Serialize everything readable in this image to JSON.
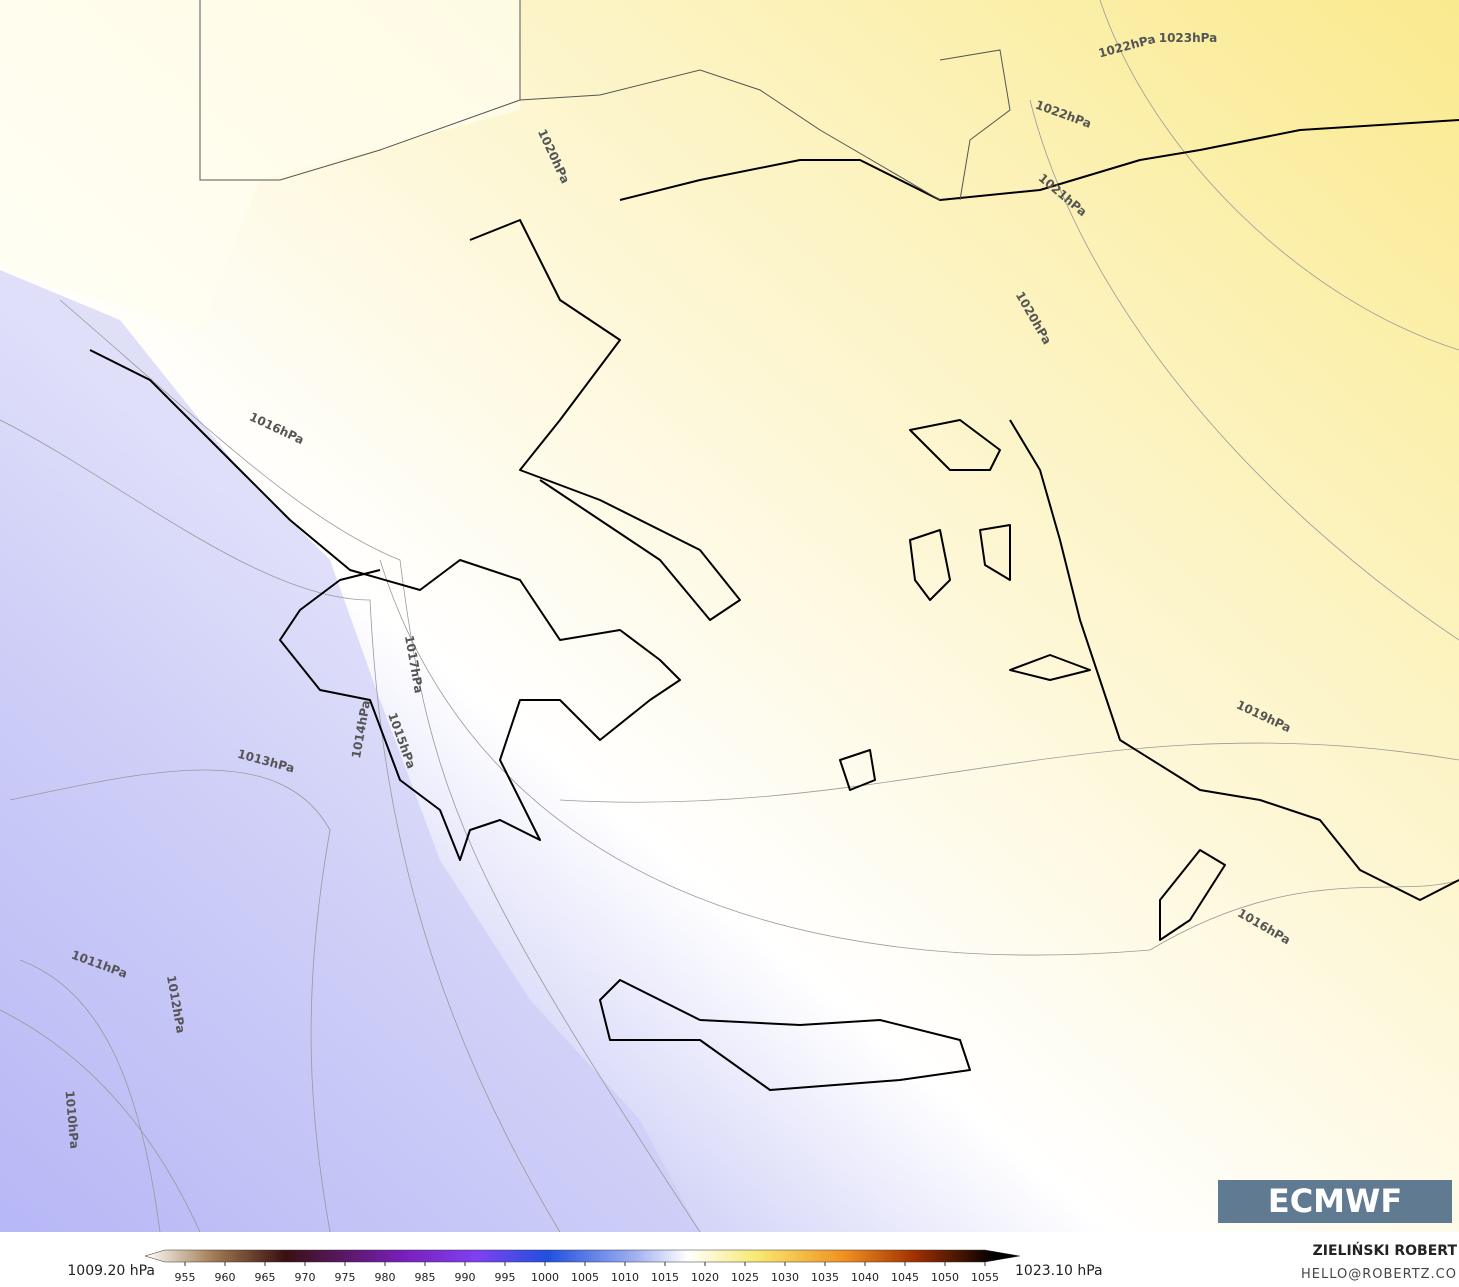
{
  "map": {
    "isobar_labels": [
      "1022hPa",
      "1023hPa",
      "1022hPa",
      "1021hPa",
      "1020hPa",
      "1020hPa",
      "1016hPa",
      "1017hPa",
      "1014hPa",
      "1015hPa",
      "1013hPa",
      "1019hPa",
      "1016hPa",
      "1011hPa",
      "1012hPa",
      "1010hPa"
    ]
  },
  "logo": "ECMWF",
  "legend": {
    "min_label": "1009.20 hPa",
    "max_label": "1023.10 hPa",
    "ticks": [
      955,
      960,
      965,
      970,
      975,
      980,
      985,
      990,
      995,
      1000,
      1005,
      1010,
      1015,
      1020,
      1025,
      1030,
      1035,
      1040,
      1045,
      1050,
      1055
    ]
  },
  "credits": {
    "author": "ZIELIŃSKI ROBERT",
    "email": "HELLO@ROBERTZ.CO"
  }
}
